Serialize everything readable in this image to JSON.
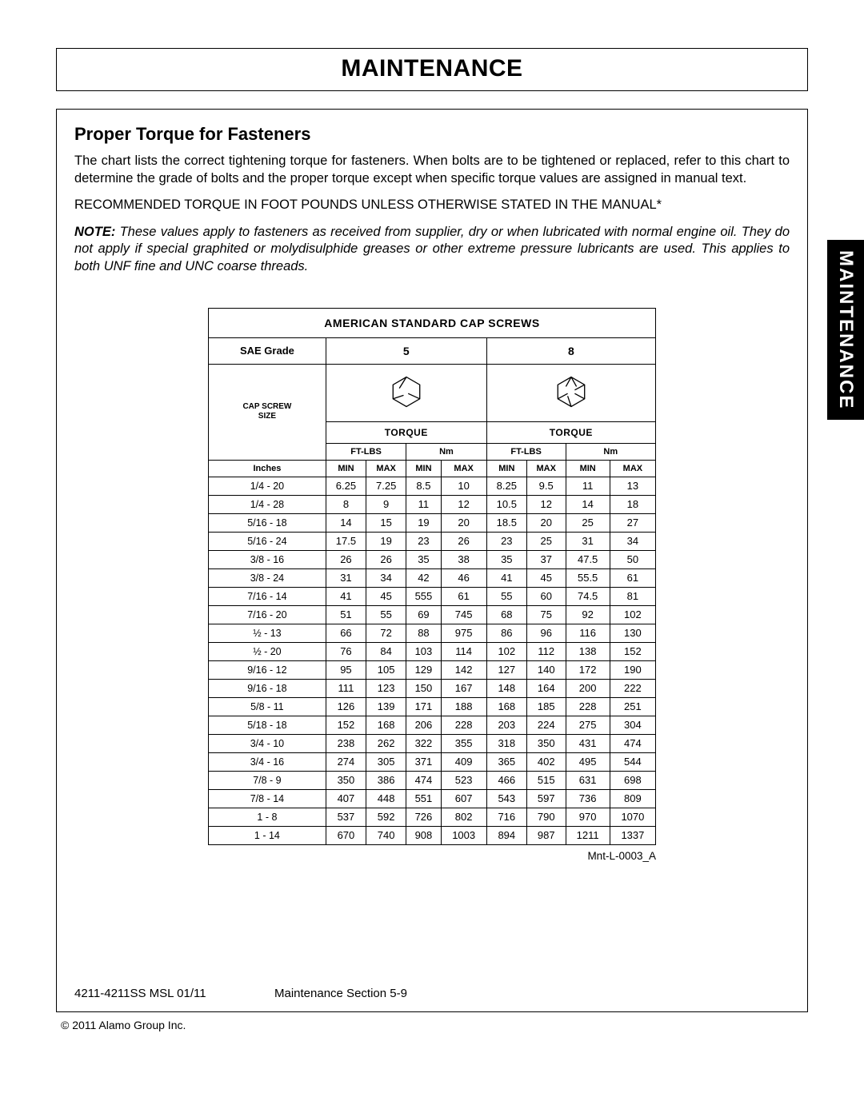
{
  "page_title": "MAINTENANCE",
  "side_tab": "MAINTENANCE",
  "subtitle": "Proper Torque for Fasteners",
  "paragraph": "The chart lists the correct tightening torque for fasteners. When bolts are to be tightened or replaced, refer to this chart to determine the grade of bolts and the proper torque except when specific torque values are assigned in manual text.",
  "recommended": "RECOMMENDED TORQUE IN FOOT POUNDS UNLESS OTHERWISE STATED IN THE MANUAL*",
  "note_label": "NOTE:",
  "note_body": " These values apply to fasteners as received from supplier, dry or when lubricated with normal engine oil. They do not apply if special graphited or molydisulphide greases or other extreme pressure lubricants are used. This applies to both UNF fine and UNC coarse threads.",
  "table": {
    "title": "AMERICAN STANDARD CAP SCREWS",
    "sae_grade_label": "SAE Grade",
    "grades": [
      "5",
      "8"
    ],
    "cap_screw_size_label_l1": "CAP SCREW",
    "cap_screw_size_label_l2": "SIZE",
    "torque_label": "TORQUE",
    "unit_ftlbs": "FT-LBS",
    "unit_nm": "Nm",
    "min_label": "MIN",
    "max_label": "MAX",
    "size_unit_label": "Inches",
    "code": "Mnt-L-0003_A",
    "rows": [
      {
        "size": "1/4 - 20",
        "v": [
          "6.25",
          "7.25",
          "8.5",
          "10",
          "8.25",
          "9.5",
          "11",
          "13"
        ]
      },
      {
        "size": "1/4 - 28",
        "v": [
          "8",
          "9",
          "11",
          "12",
          "10.5",
          "12",
          "14",
          "18"
        ]
      },
      {
        "size": "5/16 - 18",
        "v": [
          "14",
          "15",
          "19",
          "20",
          "18.5",
          "20",
          "25",
          "27"
        ]
      },
      {
        "size": "5/16 - 24",
        "v": [
          "17.5",
          "19",
          "23",
          "26",
          "23",
          "25",
          "31",
          "34"
        ]
      },
      {
        "size": "3/8 - 16",
        "v": [
          "26",
          "26",
          "35",
          "38",
          "35",
          "37",
          "47.5",
          "50"
        ]
      },
      {
        "size": "3/8 - 24",
        "v": [
          "31",
          "34",
          "42",
          "46",
          "41",
          "45",
          "55.5",
          "61"
        ]
      },
      {
        "size": "7/16 - 14",
        "v": [
          "41",
          "45",
          "555",
          "61",
          "55",
          "60",
          "74.5",
          "81"
        ]
      },
      {
        "size": "7/16 - 20",
        "v": [
          "51",
          "55",
          "69",
          "745",
          "68",
          "75",
          "92",
          "102"
        ]
      },
      {
        "size": "½ - 13",
        "v": [
          "66",
          "72",
          "88",
          "975",
          "86",
          "96",
          "116",
          "130"
        ]
      },
      {
        "size": "½ - 20",
        "v": [
          "76",
          "84",
          "103",
          "114",
          "102",
          "112",
          "138",
          "152"
        ]
      },
      {
        "size": "9/16 - 12",
        "v": [
          "95",
          "105",
          "129",
          "142",
          "127",
          "140",
          "172",
          "190"
        ]
      },
      {
        "size": "9/16 - 18",
        "v": [
          "111",
          "123",
          "150",
          "167",
          "148",
          "164",
          "200",
          "222"
        ]
      },
      {
        "size": "5/8 - 11",
        "v": [
          "126",
          "139",
          "171",
          "188",
          "168",
          "185",
          "228",
          "251"
        ]
      },
      {
        "size": "5/18 - 18",
        "v": [
          "152",
          "168",
          "206",
          "228",
          "203",
          "224",
          "275",
          "304"
        ]
      },
      {
        "size": "3/4 - 10",
        "v": [
          "238",
          "262",
          "322",
          "355",
          "318",
          "350",
          "431",
          "474"
        ]
      },
      {
        "size": "3/4 - 16",
        "v": [
          "274",
          "305",
          "371",
          "409",
          "365",
          "402",
          "495",
          "544"
        ]
      },
      {
        "size": "7/8 - 9",
        "v": [
          "350",
          "386",
          "474",
          "523",
          "466",
          "515",
          "631",
          "698"
        ]
      },
      {
        "size": "7/8 - 14",
        "v": [
          "407",
          "448",
          "551",
          "607",
          "543",
          "597",
          "736",
          "809"
        ]
      },
      {
        "size": "1 - 8",
        "v": [
          "537",
          "592",
          "726",
          "802",
          "716",
          "790",
          "970",
          "1070"
        ]
      },
      {
        "size": "1 - 14",
        "v": [
          "670",
          "740",
          "908",
          "1003",
          "894",
          "987",
          "1211",
          "1337"
        ]
      }
    ]
  },
  "footer": {
    "left": "4211-4211SS MSL   01/11",
    "mid": "Maintenance Section 5-9",
    "copyright": "© 2011 Alamo Group Inc."
  }
}
